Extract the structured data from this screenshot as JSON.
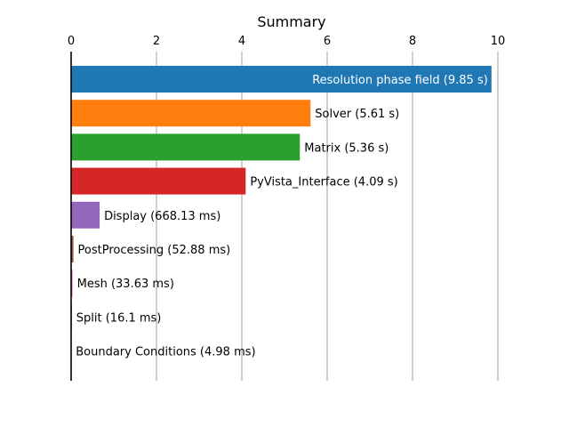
{
  "chart_data": {
    "type": "bar",
    "orientation": "horizontal",
    "title": "Summary",
    "xlabel": "",
    "ylabel": "",
    "xlim": [
      0,
      10
    ],
    "x_ticks": [
      "0",
      "2",
      "4",
      "6",
      "8",
      "10"
    ],
    "x_axis_position": "top",
    "grid": "vertical",
    "categories": [
      "Resolution phase field (9.85 s)",
      "Solver (5.61 s)",
      "Matrix (5.36 s)",
      "PyVista_Interface (4.09 s)",
      "Display (668.13 ms)",
      "PostProcessing (52.88 ms)",
      "Mesh (33.63 ms)",
      "Split (16.1 ms)",
      "Boundary Conditions (4.98 ms)"
    ],
    "values": [
      9.85,
      5.61,
      5.36,
      4.09,
      0.66813,
      0.05288,
      0.03363,
      0.0161,
      0.00498
    ],
    "colors": [
      "#1f77b4",
      "#ff7f0e",
      "#2ca02c",
      "#d62728",
      "#9467bd",
      "#8c564b",
      "#e377c2",
      "#7f7f7f",
      "#bcbd22"
    ],
    "inside_label_color": "#ffffff",
    "outside_label_color": "#000000"
  }
}
